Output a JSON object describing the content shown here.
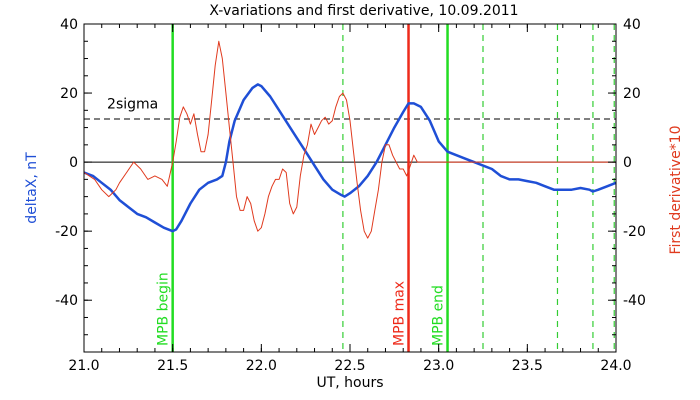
{
  "chart_data": {
    "type": "line",
    "title": "X-variations and first derivative, 10.09.2011",
    "xlabel": "UT, hours",
    "ylabel_left": "deltaX, nT",
    "ylabel_right": "First derivative*10",
    "xlim": [
      21.0,
      24.0
    ],
    "ylim": [
      -55,
      40
    ],
    "x_ticks": [
      21.0,
      21.5,
      22.0,
      22.5,
      23.0,
      23.5,
      24.0
    ],
    "x_tick_labels": [
      "21.0",
      "21.5",
      "22.0",
      "22.5",
      "23.0",
      "23.5",
      "24.0"
    ],
    "y_ticks": [
      40,
      20,
      0,
      -20,
      -40
    ],
    "y_tick_labels": [
      "40",
      "20",
      "0",
      "-20",
      "-40"
    ],
    "grid": false,
    "colors": {
      "deltaX": "#1f4fd6",
      "derivative": "#e03a1e",
      "mpb_green": "#22dd22",
      "mpb_max": "#ee2a1a",
      "dashed_green": "#33cc33",
      "axis": "#000000"
    },
    "hlines": [
      {
        "y": 0,
        "style": "solid"
      },
      {
        "y": 12.5,
        "style": "dashed",
        "label": "2sigma",
        "label_x": 21.13,
        "label_y": 15.5
      }
    ],
    "vlines": [
      {
        "x": 21.5,
        "color": "mpb_green",
        "style": "solid",
        "label": "MPB begin"
      },
      {
        "x": 22.83,
        "color": "mpb_max",
        "style": "solid",
        "label": "MPB max"
      },
      {
        "x": 23.05,
        "color": "mpb_green",
        "style": "solid",
        "label": "MPB end"
      },
      {
        "x": 22.46,
        "color": "dashed_green",
        "style": "dashed"
      },
      {
        "x": 23.25,
        "color": "dashed_green",
        "style": "dashed"
      },
      {
        "x": 23.67,
        "color": "dashed_green",
        "style": "dashed"
      },
      {
        "x": 23.87,
        "color": "dashed_green",
        "style": "dashed"
      },
      {
        "x": 23.99,
        "color": "dashed_green",
        "style": "dashed"
      }
    ],
    "series": [
      {
        "key": "deltaX",
        "x": [
          21.0,
          21.05,
          21.1,
          21.15,
          21.2,
          21.25,
          21.3,
          21.35,
          21.4,
          21.45,
          21.5,
          21.52,
          21.55,
          21.6,
          21.65,
          21.7,
          21.75,
          21.78,
          21.8,
          21.82,
          21.85,
          21.9,
          21.95,
          21.98,
          22.0,
          22.05,
          22.1,
          22.15,
          22.2,
          22.25,
          22.3,
          22.35,
          22.4,
          22.45,
          22.47,
          22.5,
          22.55,
          22.6,
          22.65,
          22.7,
          22.75,
          22.8,
          22.83,
          22.86,
          22.9,
          22.95,
          23.0,
          23.05,
          23.1,
          23.15,
          23.2,
          23.25,
          23.3,
          23.35,
          23.4,
          23.45,
          23.5,
          23.55,
          23.6,
          23.65,
          23.7,
          23.75,
          23.8,
          23.85,
          23.87,
          23.9,
          23.95,
          24.0
        ],
        "values": [
          -3,
          -4,
          -6,
          -8,
          -11,
          -13,
          -15,
          -16,
          -17.5,
          -19,
          -20,
          -19.5,
          -17,
          -12,
          -8,
          -6,
          -5,
          -4,
          0,
          6,
          12,
          18,
          21.5,
          22.5,
          22,
          19,
          15,
          11,
          7,
          3,
          -1,
          -5,
          -8,
          -9.5,
          -10,
          -9,
          -7,
          -4,
          0,
          5,
          10,
          14.5,
          17,
          17,
          16,
          12,
          6,
          3,
          2,
          1,
          0,
          -1,
          -2,
          -4,
          -5,
          -5,
          -5.5,
          -6,
          -7,
          -8,
          -8,
          -8,
          -7.5,
          -8,
          -8.5,
          -8,
          -7,
          -6
        ]
      },
      {
        "key": "derivative",
        "x": [
          21.0,
          21.03,
          21.06,
          21.1,
          21.14,
          21.18,
          21.2,
          21.24,
          21.28,
          21.32,
          21.36,
          21.4,
          21.44,
          21.47,
          21.5,
          21.52,
          21.54,
          21.56,
          21.58,
          21.6,
          21.62,
          21.64,
          21.66,
          21.68,
          21.7,
          21.72,
          21.74,
          21.76,
          21.78,
          21.8,
          21.82,
          21.84,
          21.86,
          21.88,
          21.9,
          21.92,
          21.94,
          21.96,
          21.98,
          22.0,
          22.02,
          22.04,
          22.06,
          22.08,
          22.1,
          22.12,
          22.14,
          22.16,
          22.18,
          22.2,
          22.22,
          22.24,
          22.26,
          22.28,
          22.3,
          22.32,
          22.34,
          22.36,
          22.38,
          22.4,
          22.42,
          22.44,
          22.46,
          22.48,
          22.5,
          22.52,
          22.54,
          22.56,
          22.58,
          22.6,
          22.62,
          22.64,
          22.66,
          22.68,
          22.7,
          22.72,
          22.74,
          22.76,
          22.78,
          22.8,
          22.82,
          22.84,
          22.86,
          22.88,
          22.9,
          22.92,
          22.94,
          22.96,
          22.98,
          23.0,
          23.02,
          23.05,
          23.08,
          23.11,
          23.14,
          23.17,
          23.2,
          23.23,
          23.26,
          23.3,
          23.34,
          23.38,
          23.42,
          23.46,
          23.5,
          23.54,
          23.58,
          23.62,
          23.66,
          23.7,
          23.74,
          23.78,
          23.82,
          23.86,
          23.9,
          23.94,
          23.98,
          24.0
        ],
        "values": [
          -3,
          -4,
          -5,
          -8,
          -10,
          -8,
          -6,
          -3,
          0,
          -2,
          -5,
          -4,
          -5,
          -7,
          0,
          6,
          13,
          16,
          14,
          11,
          14,
          8,
          3,
          3,
          8,
          18,
          28,
          35,
          30,
          20,
          10,
          0,
          -10,
          -14,
          -14,
          -10,
          -12,
          -17,
          -20,
          -19,
          -15,
          -10,
          -7,
          -5,
          -5,
          -2,
          -3,
          -12,
          -15,
          -13,
          -4,
          2,
          5,
          11,
          8,
          10,
          12,
          13,
          11,
          12,
          16,
          19,
          20,
          18,
          12,
          3,
          -6,
          -14,
          -20,
          -22,
          -20,
          -14,
          -8,
          0,
          5,
          5,
          2,
          0,
          -2,
          -2,
          -4,
          -1,
          2,
          0,
          0,
          0,
          0,
          0,
          0,
          0,
          0,
          0,
          0,
          0,
          0,
          0,
          0,
          0,
          0,
          0,
          0,
          0,
          0,
          0,
          0,
          0,
          0,
          0,
          0,
          0,
          0,
          0,
          0,
          0,
          0,
          0,
          0,
          0
        ]
      }
    ]
  }
}
